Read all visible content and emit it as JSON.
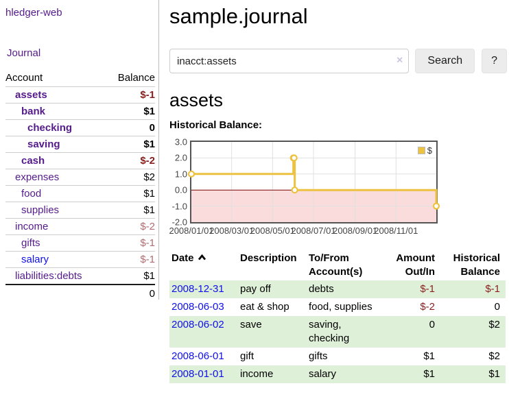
{
  "colors": {
    "link_purple": "#551a8b",
    "link_blue": "#0f0fe8",
    "negative_strong": "#8b1e1e",
    "negative_soft": "#b26b70",
    "row_green": "#dff0d8",
    "chart_line_gold": "#edc240",
    "chart_negative_region": "#fbdcdc",
    "chart_zero_line": "#7a0000",
    "chart_grid": "#e0e0e0",
    "chart_border": "#545454"
  },
  "app": {
    "title": "hledger-web"
  },
  "sidebar": {
    "journal_link": "Journal",
    "headers": {
      "account": "Account",
      "balance": "Balance"
    },
    "accounts": [
      {
        "name": "assets",
        "balance": "$-1",
        "level": 1,
        "bold": true,
        "blue": false
      },
      {
        "name": "bank",
        "balance": "$1",
        "level": 2,
        "bold": true,
        "blue": false
      },
      {
        "name": "checking",
        "balance": "0",
        "level": 3,
        "bold": true,
        "blue": false
      },
      {
        "name": "saving",
        "balance": "$1",
        "level": 3,
        "bold": true,
        "blue": false
      },
      {
        "name": "cash",
        "balance": "$-2",
        "level": 2,
        "bold": true,
        "blue": false
      },
      {
        "name": "expenses",
        "balance": "$2",
        "level": 1,
        "bold": false,
        "blue": false
      },
      {
        "name": "food",
        "balance": "$1",
        "level": 2,
        "bold": false,
        "blue": false
      },
      {
        "name": "supplies",
        "balance": "$1",
        "level": 2,
        "bold": false,
        "blue": false
      },
      {
        "name": "income",
        "balance": "$-2",
        "level": 1,
        "bold": false,
        "blue": false
      },
      {
        "name": "gifts",
        "balance": "$-1",
        "level": 2,
        "bold": false,
        "blue": false
      },
      {
        "name": "salary",
        "balance": "$-1",
        "level": 2,
        "bold": false,
        "blue": true
      },
      {
        "name": "liabilities:debts",
        "balance": "$1",
        "level": 1,
        "bold": false,
        "blue": false
      }
    ],
    "total": "0"
  },
  "main": {
    "title": "sample.journal",
    "search": {
      "value": "inacct:assets",
      "clear_icon": "×",
      "button_label": "Search",
      "help_label": "?"
    },
    "heading": "assets",
    "chart_label": "Historical Balance:"
  },
  "chart_data": {
    "type": "line",
    "step": true,
    "title": "Historical Balance",
    "x_range": [
      "2008-01-01",
      "2008-12-31"
    ],
    "ylim": [
      -2,
      3
    ],
    "y_ticks": [
      3.0,
      2.0,
      1.0,
      0.0,
      -1.0,
      -2.0
    ],
    "x_tick_labels": [
      "2008/01/01",
      "2008/03/01",
      "2008/05/01",
      "2008/07/01",
      "2008/09/01",
      "2008/11/01"
    ],
    "x_tick_dates": [
      "2008-01-01",
      "2008-03-01",
      "2008-05-01",
      "2008-07-01",
      "2008-09-01",
      "2008-11-01"
    ],
    "grid": true,
    "legend_position": "top-right",
    "negative_region_shaded": true,
    "series": [
      {
        "name": "$",
        "color": "#edc240",
        "points": [
          {
            "date": "2008-01-01",
            "value": 1
          },
          {
            "date": "2008-06-01",
            "value": 2
          },
          {
            "date": "2008-06-02",
            "value": 2
          },
          {
            "date": "2008-06-03",
            "value": 0
          },
          {
            "date": "2008-12-31",
            "value": -1
          }
        ]
      }
    ]
  },
  "register": {
    "headers": [
      "Date",
      "Description",
      "To/From Account(s)",
      "Amount Out/In",
      "Historical Balance"
    ],
    "rows": [
      {
        "date": "2008-12-31",
        "description": "pay off",
        "accounts": "debts",
        "amount": "$-1",
        "balance": "$-1"
      },
      {
        "date": "2008-06-03",
        "description": "eat & shop",
        "accounts": "food, supplies",
        "amount": "$-2",
        "balance": "0"
      },
      {
        "date": "2008-06-02",
        "description": "save",
        "accounts": "saving, checking",
        "amount": "0",
        "balance": "$2"
      },
      {
        "date": "2008-06-01",
        "description": "gift",
        "accounts": "gifts",
        "amount": "$1",
        "balance": "$2"
      },
      {
        "date": "2008-01-01",
        "description": "income",
        "accounts": "salary",
        "amount": "$1",
        "balance": "$1"
      }
    ]
  }
}
